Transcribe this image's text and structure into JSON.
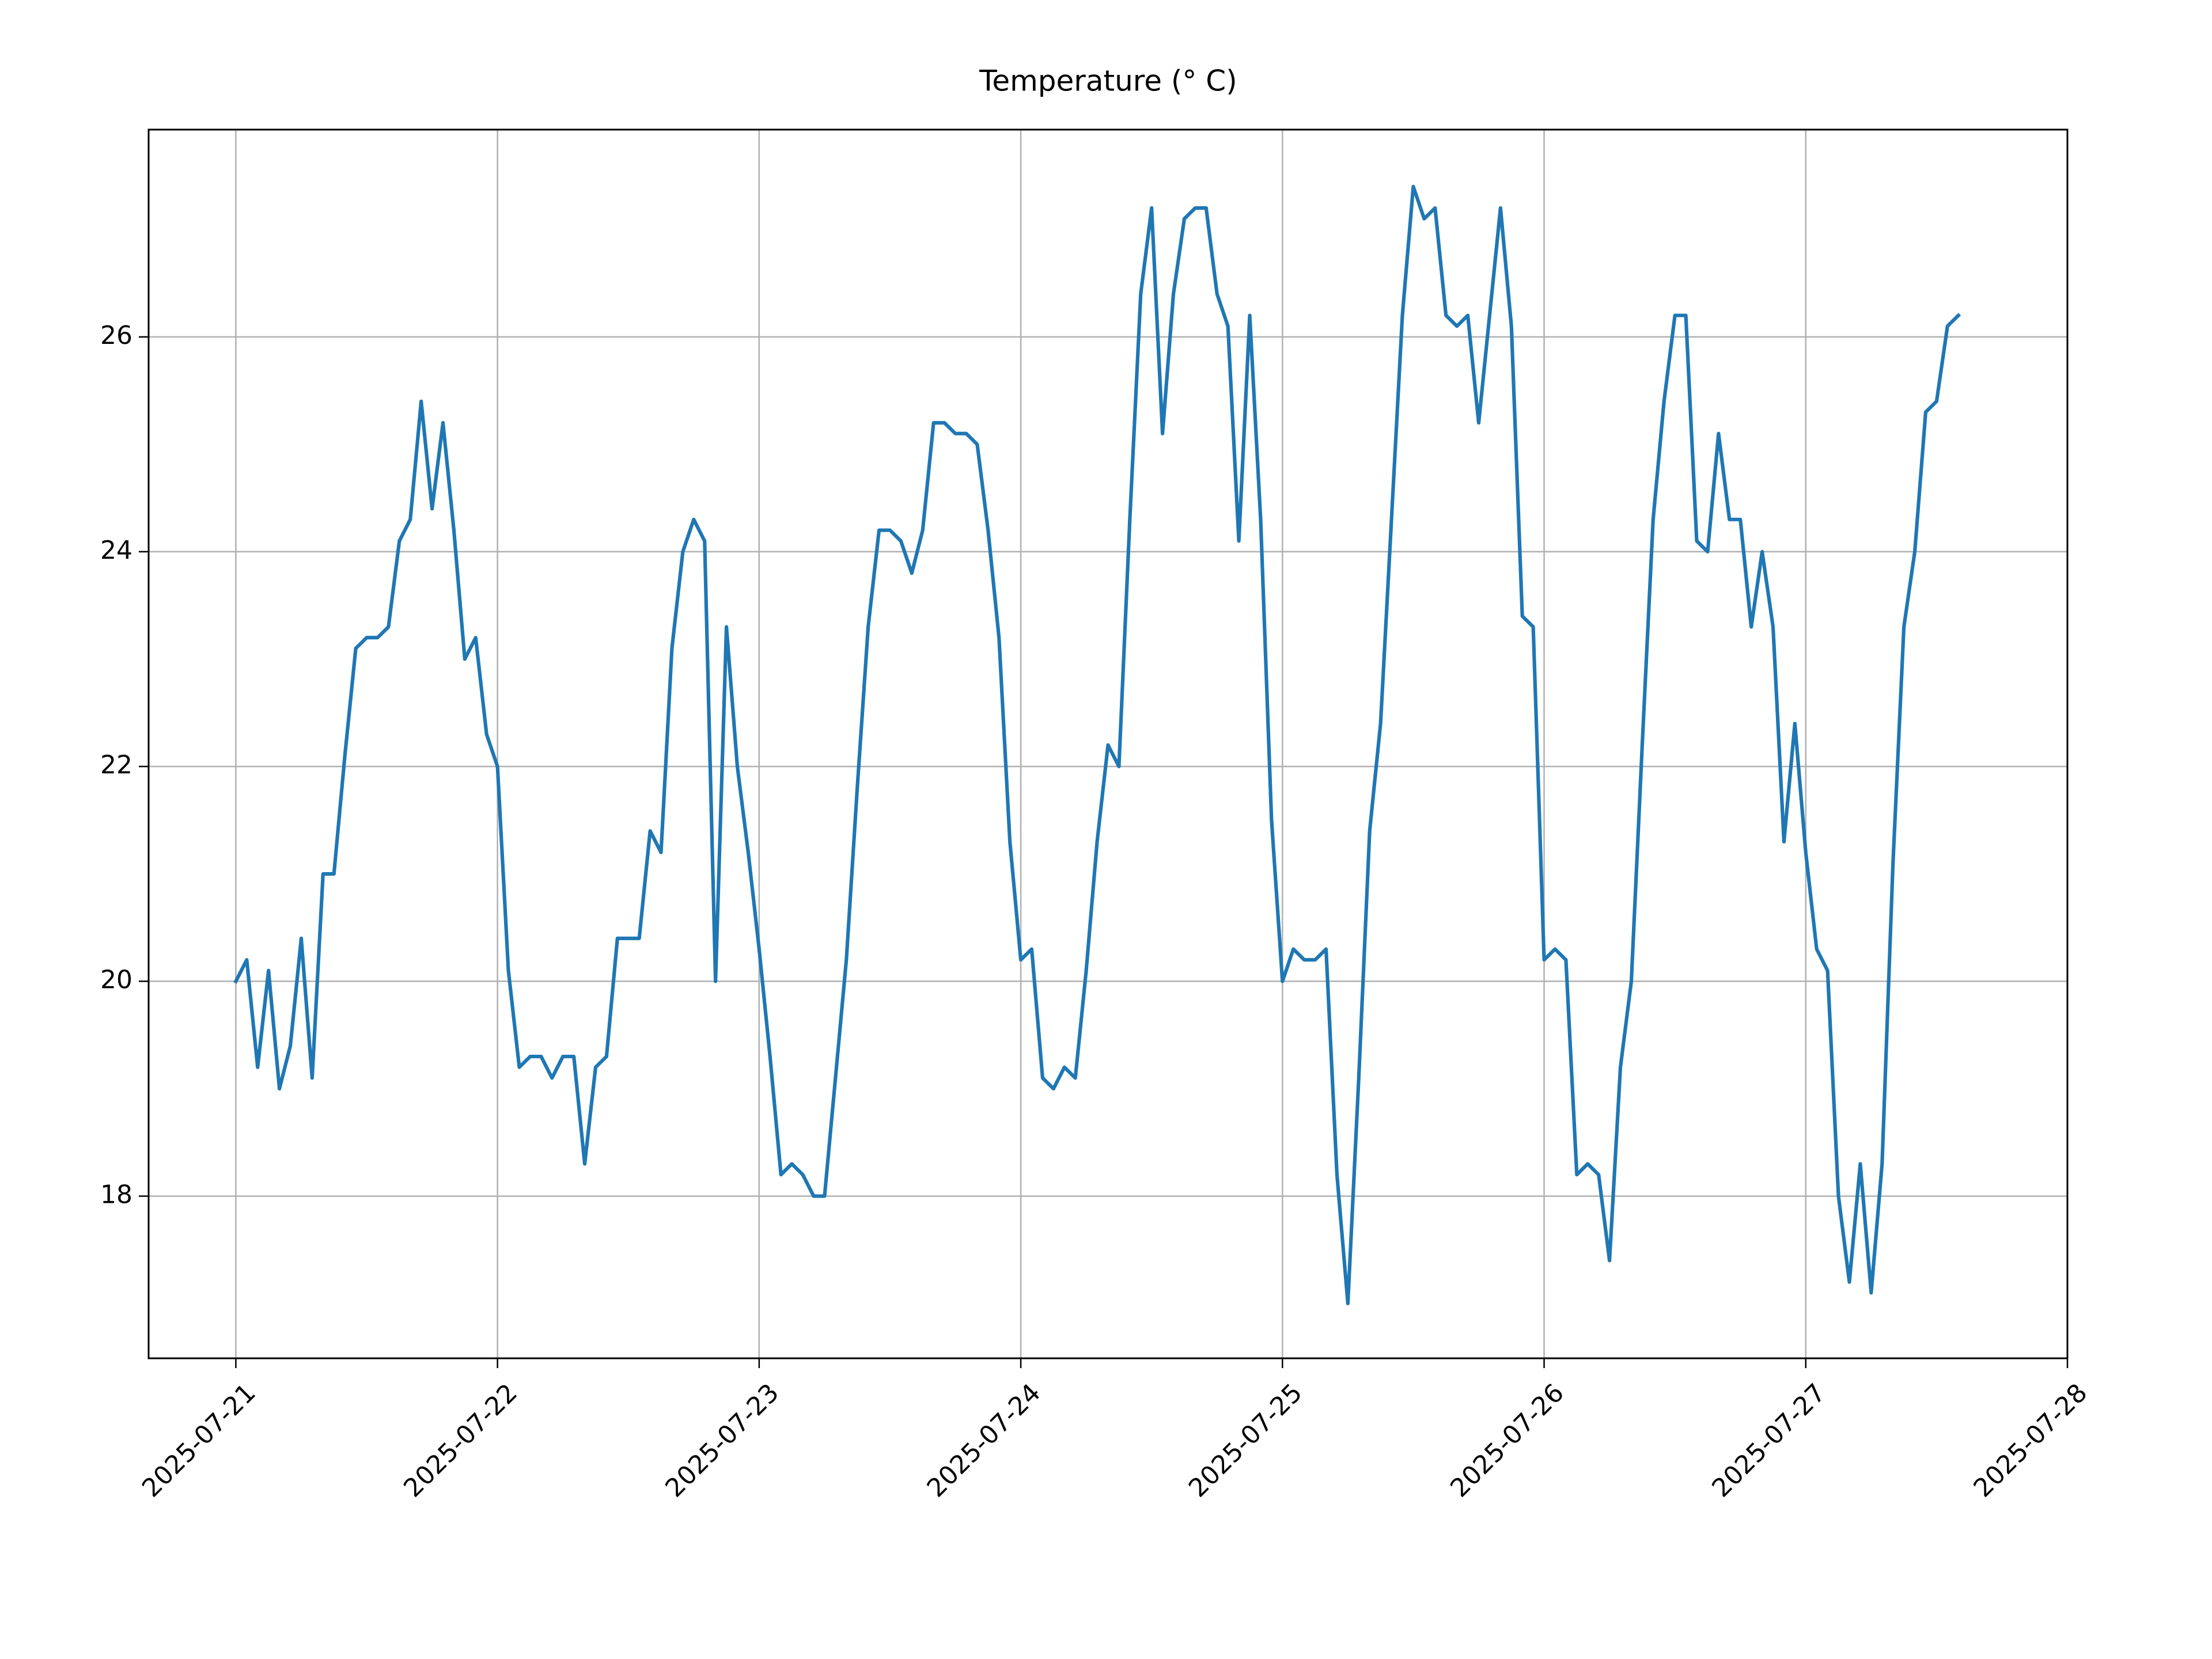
{
  "chart_data": {
    "type": "line",
    "title": "Temperature (° C)",
    "color": "#1f77b4",
    "grid": true,
    "xlim": [
      "2025-07-20 16:00",
      "2025-07-28 00:00"
    ],
    "xticks": [
      "2025-07-21",
      "2025-07-22",
      "2025-07-23",
      "2025-07-24",
      "2025-07-25",
      "2025-07-26",
      "2025-07-27",
      "2025-07-28"
    ],
    "ylim": [
      16.49,
      27.93
    ],
    "yticks": [
      18,
      20,
      22,
      24,
      26
    ],
    "x": [
      "2025-07-21 00:00",
      "2025-07-21 01:00",
      "2025-07-21 02:00",
      "2025-07-21 03:00",
      "2025-07-21 04:00",
      "2025-07-21 05:00",
      "2025-07-21 06:00",
      "2025-07-21 07:00",
      "2025-07-21 08:00",
      "2025-07-21 09:00",
      "2025-07-21 10:00",
      "2025-07-21 11:00",
      "2025-07-21 12:00",
      "2025-07-21 13:00",
      "2025-07-21 14:00",
      "2025-07-21 15:00",
      "2025-07-21 16:00",
      "2025-07-21 17:00",
      "2025-07-21 18:00",
      "2025-07-21 19:00",
      "2025-07-21 20:00",
      "2025-07-21 21:00",
      "2025-07-21 22:00",
      "2025-07-21 23:00",
      "2025-07-22 00:00",
      "2025-07-22 01:00",
      "2025-07-22 02:00",
      "2025-07-22 03:00",
      "2025-07-22 04:00",
      "2025-07-22 05:00",
      "2025-07-22 06:00",
      "2025-07-22 07:00",
      "2025-07-22 08:00",
      "2025-07-22 09:00",
      "2025-07-22 10:00",
      "2025-07-22 11:00",
      "2025-07-22 12:00",
      "2025-07-22 13:00",
      "2025-07-22 14:00",
      "2025-07-22 15:00",
      "2025-07-22 16:00",
      "2025-07-22 17:00",
      "2025-07-22 18:00",
      "2025-07-22 19:00",
      "2025-07-22 20:00",
      "2025-07-22 21:00",
      "2025-07-22 22:00",
      "2025-07-22 23:00",
      "2025-07-23 00:00",
      "2025-07-23 01:00",
      "2025-07-23 02:00",
      "2025-07-23 03:00",
      "2025-07-23 04:00",
      "2025-07-23 05:00",
      "2025-07-23 06:00",
      "2025-07-23 07:00",
      "2025-07-23 08:00",
      "2025-07-23 09:00",
      "2025-07-23 10:00",
      "2025-07-23 11:00",
      "2025-07-23 12:00",
      "2025-07-23 13:00",
      "2025-07-23 14:00",
      "2025-07-23 15:00",
      "2025-07-23 16:00",
      "2025-07-23 17:00",
      "2025-07-23 18:00",
      "2025-07-23 19:00",
      "2025-07-23 20:00",
      "2025-07-23 21:00",
      "2025-07-23 22:00",
      "2025-07-23 23:00",
      "2025-07-24 00:00",
      "2025-07-24 01:00",
      "2025-07-24 02:00",
      "2025-07-24 03:00",
      "2025-07-24 04:00",
      "2025-07-24 05:00",
      "2025-07-24 06:00",
      "2025-07-24 07:00",
      "2025-07-24 08:00",
      "2025-07-24 09:00",
      "2025-07-24 10:00",
      "2025-07-24 11:00",
      "2025-07-24 12:00",
      "2025-07-24 13:00",
      "2025-07-24 14:00",
      "2025-07-24 15:00",
      "2025-07-24 16:00",
      "2025-07-24 17:00",
      "2025-07-24 18:00",
      "2025-07-24 19:00",
      "2025-07-24 20:00",
      "2025-07-24 21:00",
      "2025-07-24 22:00",
      "2025-07-24 23:00",
      "2025-07-25 00:00",
      "2025-07-25 01:00",
      "2025-07-25 02:00",
      "2025-07-25 03:00",
      "2025-07-25 04:00",
      "2025-07-25 05:00",
      "2025-07-25 06:00",
      "2025-07-25 07:00",
      "2025-07-25 08:00",
      "2025-07-25 09:00",
      "2025-07-25 10:00",
      "2025-07-25 11:00",
      "2025-07-25 12:00",
      "2025-07-25 13:00",
      "2025-07-25 14:00",
      "2025-07-25 15:00",
      "2025-07-25 16:00",
      "2025-07-25 17:00",
      "2025-07-25 18:00",
      "2025-07-25 19:00",
      "2025-07-25 20:00",
      "2025-07-25 21:00",
      "2025-07-25 22:00",
      "2025-07-25 23:00",
      "2025-07-26 00:00",
      "2025-07-26 01:00",
      "2025-07-26 02:00",
      "2025-07-26 03:00",
      "2025-07-26 04:00",
      "2025-07-26 05:00",
      "2025-07-26 06:00",
      "2025-07-26 07:00",
      "2025-07-26 08:00",
      "2025-07-26 09:00",
      "2025-07-26 10:00",
      "2025-07-26 11:00",
      "2025-07-26 12:00",
      "2025-07-26 13:00",
      "2025-07-26 14:00",
      "2025-07-26 15:00",
      "2025-07-26 16:00",
      "2025-07-26 17:00",
      "2025-07-26 18:00",
      "2025-07-26 19:00",
      "2025-07-26 20:00",
      "2025-07-26 21:00",
      "2025-07-26 22:00",
      "2025-07-26 23:00",
      "2025-07-27 00:00",
      "2025-07-27 01:00",
      "2025-07-27 02:00",
      "2025-07-27 03:00",
      "2025-07-27 04:00",
      "2025-07-27 05:00",
      "2025-07-27 06:00",
      "2025-07-27 07:00",
      "2025-07-27 08:00",
      "2025-07-27 09:00",
      "2025-07-27 10:00",
      "2025-07-27 11:00",
      "2025-07-27 12:00",
      "2025-07-27 13:00",
      "2025-07-27 14:00"
    ],
    "values": [
      20.0,
      20.2,
      19.2,
      20.1,
      19.0,
      19.4,
      20.4,
      19.1,
      21.0,
      21.0,
      22.1,
      23.1,
      23.2,
      23.2,
      23.3,
      24.1,
      24.3,
      25.4,
      24.4,
      25.2,
      24.2,
      23.0,
      23.2,
      22.3,
      22.0,
      20.1,
      19.2,
      19.3,
      19.3,
      19.1,
      19.3,
      19.3,
      18.3,
      19.2,
      19.3,
      20.4,
      20.4,
      20.4,
      21.4,
      21.2,
      23.1,
      24.0,
      24.3,
      24.1,
      20.0,
      23.3,
      22.0,
      21.2,
      20.3,
      19.3,
      18.2,
      18.3,
      18.2,
      18.0,
      18.0,
      19.1,
      20.2,
      21.8,
      23.3,
      24.2,
      24.2,
      24.1,
      23.8,
      24.2,
      25.2,
      25.2,
      25.1,
      25.1,
      25.0,
      24.2,
      23.2,
      21.3,
      20.2,
      20.3,
      19.1,
      19.0,
      19.2,
      19.1,
      20.1,
      21.3,
      22.2,
      22.0,
      24.3,
      26.4,
      27.2,
      25.1,
      26.4,
      27.1,
      27.2,
      27.2,
      26.4,
      26.1,
      24.1,
      26.2,
      24.3,
      21.5,
      20.0,
      20.3,
      20.2,
      20.2,
      20.3,
      18.2,
      17.0,
      19.1,
      21.4,
      22.4,
      24.3,
      26.2,
      27.4,
      27.1,
      27.2,
      26.2,
      26.1,
      26.2,
      25.2,
      26.2,
      27.2,
      26.1,
      23.4,
      23.3,
      20.2,
      20.3,
      20.2,
      18.2,
      18.3,
      18.2,
      17.4,
      19.2,
      20.0,
      22.2,
      24.3,
      25.4,
      26.2,
      26.2,
      24.1,
      24.0,
      25.1,
      24.3,
      24.3,
      23.3,
      24.0,
      23.3,
      21.3,
      22.4,
      21.2,
      20.3,
      20.1,
      18.0,
      17.2,
      18.3,
      17.1,
      18.3,
      21.1,
      23.3,
      24.0,
      25.3,
      25.4,
      26.1,
      26.2
    ]
  }
}
